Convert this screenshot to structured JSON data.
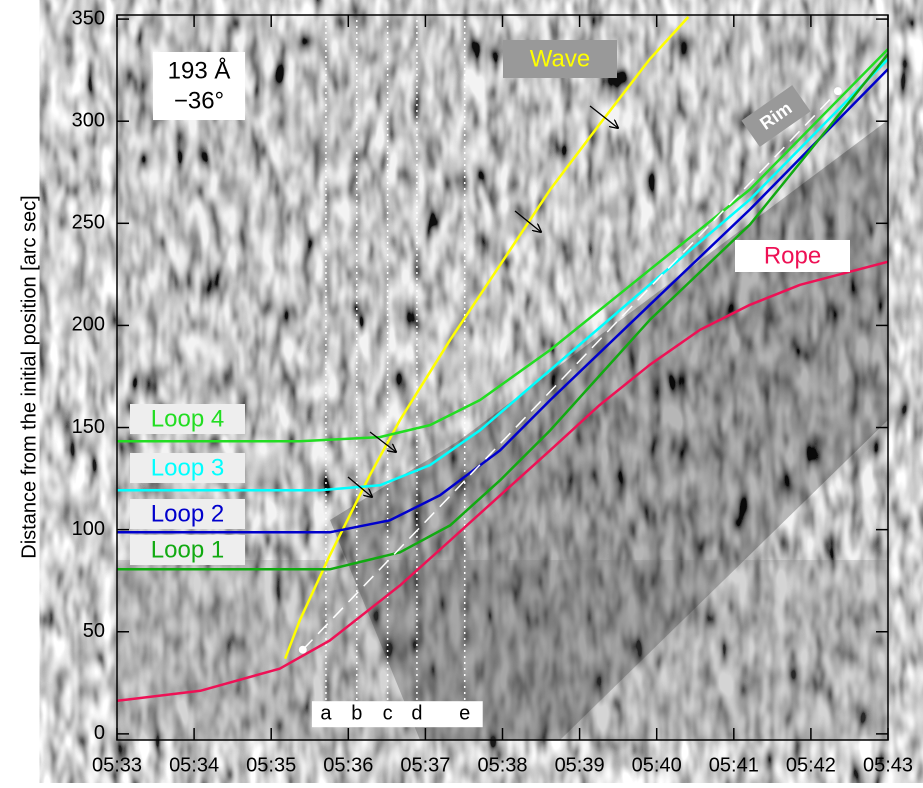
{
  "chart_data": {
    "type": "line",
    "y_label": "Distance from the initial position [arc sec]",
    "annotations": [
      "193 Å",
      "−36°"
    ],
    "xlim": [
      333,
      343
    ],
    "xticks": [
      {
        "value": 333,
        "label": "05:33"
      },
      {
        "value": 334,
        "label": "05:34"
      },
      {
        "value": 335,
        "label": "05:35"
      },
      {
        "value": 336,
        "label": "05:36"
      },
      {
        "value": 337,
        "label": "05:37"
      },
      {
        "value": 338,
        "label": "05:38"
      },
      {
        "value": 339,
        "label": "05:39"
      },
      {
        "value": 340,
        "label": "05:40"
      },
      {
        "value": 341,
        "label": "05:41"
      },
      {
        "value": 342,
        "label": "05:42"
      },
      {
        "value": 343,
        "label": "05:43"
      }
    ],
    "ylim": [
      -3,
      352
    ],
    "yticks": [
      0,
      50,
      100,
      150,
      200,
      250,
      300,
      350
    ],
    "markers": [
      {
        "label": "a",
        "x": 335.71
      },
      {
        "label": "b",
        "x": 336.11
      },
      {
        "label": "c",
        "x": 336.51
      },
      {
        "label": "d",
        "x": 336.89
      },
      {
        "label": "e",
        "x": 337.51
      }
    ],
    "series": [
      {
        "name": "Wave",
        "color": "#ffff00",
        "x": [
          335.18,
          335.37,
          335.76,
          336.28,
          336.67,
          337.32,
          337.97,
          338.62,
          339.26,
          339.91,
          340.41
        ],
        "values": [
          36.8,
          55.5,
          87.4,
          126.7,
          153.7,
          192.9,
          229.7,
          266.6,
          298.5,
          330.4,
          351
        ]
      },
      {
        "name": "Loop 4",
        "color": "#22dd22",
        "x": [
          333,
          335.37,
          336.41,
          337.06,
          337.71,
          338.62,
          339.91,
          341.21,
          343
        ],
        "values": [
          143.3,
          143.3,
          145.3,
          151.2,
          163.5,
          188,
          227.3,
          266.6,
          335.3
        ]
      },
      {
        "name": "Loop 3",
        "color": "#00ffff",
        "x": [
          333,
          335.63,
          336.41,
          337.06,
          337.71,
          338.62,
          339.91,
          341.21,
          343
        ],
        "values": [
          119.3,
          119.3,
          121.7,
          131.6,
          148.7,
          178.2,
          220,
          261.7,
          330.4
        ]
      },
      {
        "name": "Loop 2",
        "color": "#0000cc",
        "x": [
          333,
          335.76,
          336.54,
          337.19,
          337.97,
          338.62,
          339.91,
          341.21,
          343
        ],
        "values": [
          98.7,
          98.7,
          104.6,
          116.8,
          138.9,
          163.5,
          210.1,
          256.8,
          325.5
        ]
      },
      {
        "name": "Loop 1",
        "color": "#11aa11",
        "x": [
          333,
          335.76,
          336.67,
          337.32,
          337.97,
          338.62,
          339.91,
          341.21,
          343
        ],
        "values": [
          80.6,
          80.6,
          88.9,
          102.1,
          124.2,
          148.7,
          202.7,
          249.4,
          332.8
        ]
      },
      {
        "name": "Rope",
        "color": "#ee1155",
        "x": [
          333,
          334.08,
          335.11,
          335.76,
          336.67,
          337.32,
          337.97,
          338.62,
          339.26,
          339.91,
          340.56,
          341.21,
          341.86,
          343
        ],
        "values": [
          16.2,
          21.1,
          31.9,
          45.7,
          72.7,
          94.7,
          116.8,
          138.9,
          161,
          180.7,
          197.8,
          210.1,
          219.9,
          231.2
        ]
      },
      {
        "name": "Rim",
        "color": "#ffffff",
        "style": "dashed",
        "endpoint_markers": true,
        "x": [
          335.41,
          342.35
        ],
        "values": [
          41.2,
          314.7
        ]
      }
    ]
  }
}
